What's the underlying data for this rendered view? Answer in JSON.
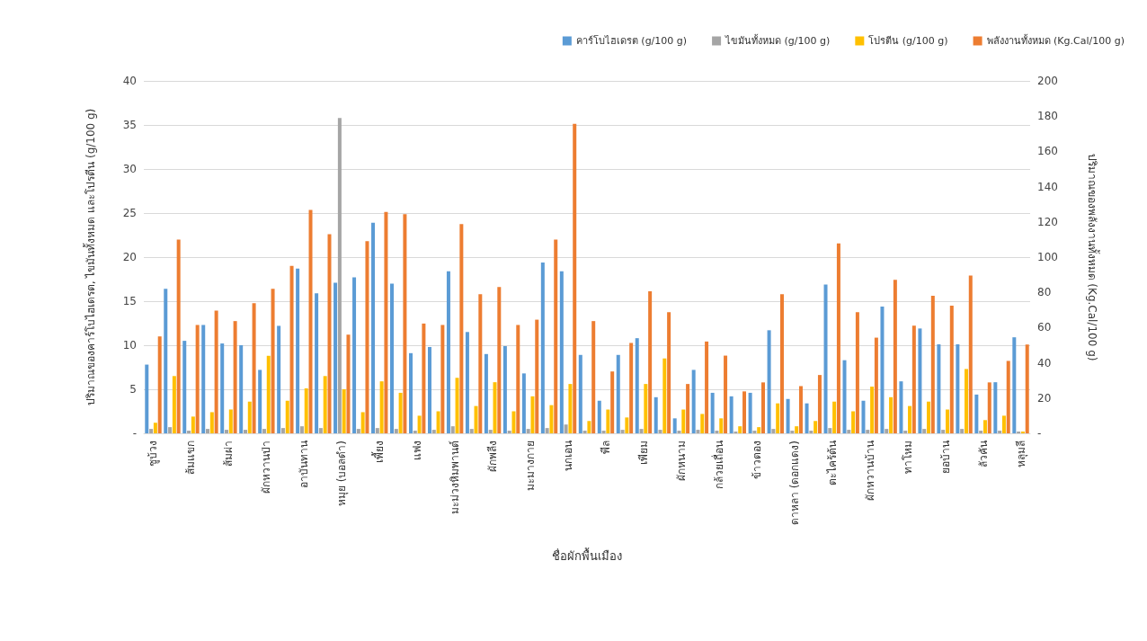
{
  "chart_data": {
    "type": "bar",
    "xlabel": "ชื่อผักพื้นเมือง",
    "ylabel": "ปริมาณของคาร์โบไฮเดรต, ไขมันทั้งหมด และโปรตีน (g/100 g)",
    "y2label": "ปริมาณของพลังงานทั้งหมด (Kg.Cal/100 g)",
    "categories": [
      "ชูบ้วง",
      null,
      "ส้มแขก",
      null,
      "ส้มผ่า",
      null,
      "ผักหวานป่า",
      null,
      "อาบันทาน",
      null,
      "หมุย (บอลดำ)",
      null,
      "เพี้ยง",
      null,
      "แฟง",
      null,
      "มะม่วงหิมพานต์",
      null,
      "ผักพลีง",
      null,
      "มะมางกาย",
      null,
      "นกเอน",
      null,
      "พีล",
      null,
      "เพียม",
      null,
      "ผักหนาม",
      null,
      "กล้วยเถื่อน",
      null,
      "ข้าวตอง",
      null,
      "ดาหลา (ดอกแดง)",
      null,
      "ตะไคร้ต้น",
      null,
      "ผักหวานบ้าน",
      null,
      "ทาโหม",
      null,
      "ยอบ้าน",
      null,
      "ลัวคัน",
      null,
      "หลุมลี"
    ],
    "series": [
      {
        "name": "คาร์โบไฮเดรต (g/100 g)",
        "color": "#5b9bd5",
        "values": [
          7.8,
          16.4,
          10.5,
          12.3,
          10.2,
          10.0,
          7.2,
          12.2,
          18.7,
          15.9,
          17.1,
          17.7,
          23.9,
          17.0,
          9.1,
          9.8,
          18.4,
          11.5,
          9.0,
          9.9,
          6.8,
          19.4,
          18.4,
          8.9,
          3.7,
          8.9,
          10.8,
          4.1,
          1.7,
          7.2,
          4.6,
          4.2,
          4.6,
          11.7,
          3.9,
          3.4,
          16.9,
          8.3,
          3.7,
          14.4,
          5.9,
          11.9,
          10.1,
          10.1,
          4.4,
          5.8,
          10.9
        ]
      },
      {
        "name": "ไขมันทั้งหมด (g/100 g)",
        "color": "#a5a5a5",
        "values": [
          0.5,
          0.7,
          0.3,
          0.5,
          0.4,
          0.4,
          0.5,
          0.6,
          0.8,
          0.6,
          35.8,
          0.5,
          0.6,
          0.5,
          0.3,
          0.4,
          0.8,
          0.5,
          0.4,
          0.3,
          0.5,
          0.6,
          1.0,
          0.3,
          0.3,
          0.4,
          0.5,
          0.4,
          0.3,
          0.4,
          0.3,
          0.2,
          0.3,
          0.5,
          0.3,
          0.3,
          0.6,
          0.4,
          0.4,
          0.5,
          0.3,
          0.5,
          0.4,
          0.5,
          0.3,
          0.3,
          0.2
        ]
      },
      {
        "name": "โปรตีน (g/100 g)",
        "color": "#ffc000",
        "values": [
          1.2,
          6.5,
          1.9,
          2.4,
          2.7,
          3.6,
          8.8,
          3.7,
          5.1,
          6.5,
          5.0,
          2.4,
          5.9,
          4.6,
          2.0,
          2.5,
          6.3,
          3.1,
          5.8,
          2.5,
          4.2,
          3.2,
          5.6,
          1.4,
          2.7,
          1.8,
          5.6,
          8.5,
          2.7,
          2.2,
          1.7,
          0.8,
          0.7,
          3.4,
          0.8,
          1.4,
          3.6,
          2.5,
          5.3,
          4.1,
          3.1,
          3.6,
          2.7,
          7.3,
          1.5,
          2.0,
          0.2
        ]
      },
      {
        "name": "พลังงานทั้งหมด (Kg.Cal/100 g)",
        "color": "#ed7d31",
        "axis": "y2",
        "values": [
          55,
          110,
          61.5,
          69.6,
          63.7,
          73.9,
          82,
          95,
          126.8,
          113,
          56,
          109,
          125.6,
          124.3,
          62.3,
          61.5,
          118.8,
          79,
          83,
          61.5,
          64.5,
          110,
          175.7,
          63.7,
          35.1,
          51.3,
          80.6,
          68.8,
          28,
          52.1,
          44.1,
          23.8,
          28.9,
          79,
          26.8,
          33.1,
          107.8,
          68.8,
          54.3,
          87.1,
          61.1,
          78.1,
          72.5,
          89.5,
          28.9,
          41.1,
          50.4
        ]
      }
    ],
    "ylim": [
      0,
      40
    ],
    "yticks": [
      {
        "value": 0,
        "label": "-"
      },
      5,
      10,
      15,
      20,
      25,
      30,
      35,
      40
    ],
    "y2lim": [
      0,
      200
    ],
    "y2ticks": [
      {
        "value": 0,
        "label": "-"
      },
      20,
      40,
      60,
      80,
      100,
      120,
      140,
      160,
      180,
      200
    ],
    "grid": "y",
    "legend": "top right"
  }
}
